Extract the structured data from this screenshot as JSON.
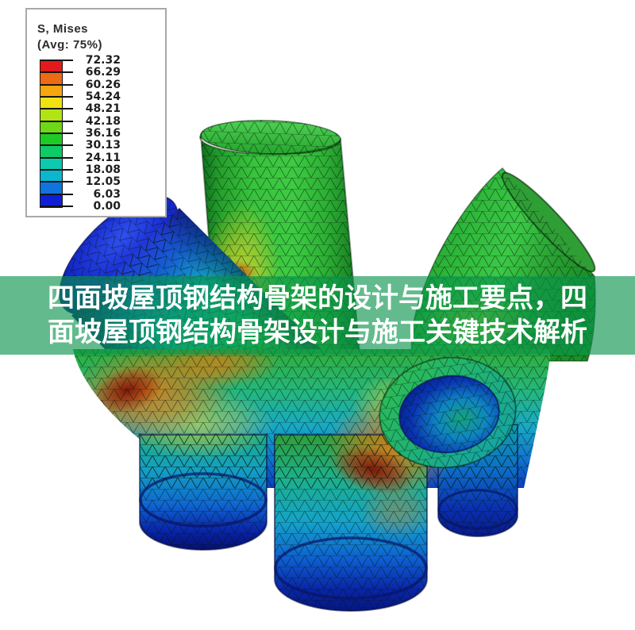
{
  "figure": {
    "kind": "finite-element-von-mises-stress-plot",
    "legend": {
      "title": "S, Mises",
      "subtitle": "(Avg: 75%)",
      "tick_values": [
        "72.32",
        "66.29",
        "60.26",
        "54.24",
        "48.21",
        "42.18",
        "36.16",
        "30.13",
        "24.11",
        "18.08",
        "12.05",
        "6.03",
        "0.00"
      ],
      "band_colors": [
        "#e31a1c",
        "#ef6a14",
        "#f8a610",
        "#f0e312",
        "#b2e414",
        "#6ed816",
        "#1ecb25",
        "#0dcb66",
        "#0ccaae",
        "#0bb7cf",
        "#1173dd",
        "#0f1fd6"
      ]
    },
    "palette": {
      "high_stress": "#e31a1c",
      "mid_stress": "#1ecb25",
      "low_stress": "#0f1fd6"
    }
  },
  "banner": {
    "line1": "四面坡屋顶钢结构骨架的设计与施工要点，四",
    "line2": "面坡屋顶钢结构骨架设计与施工关键技术解析",
    "overlay_color": "#08944A",
    "overlay_opacity": 0.63,
    "text_color": "#FFFFFF"
  }
}
